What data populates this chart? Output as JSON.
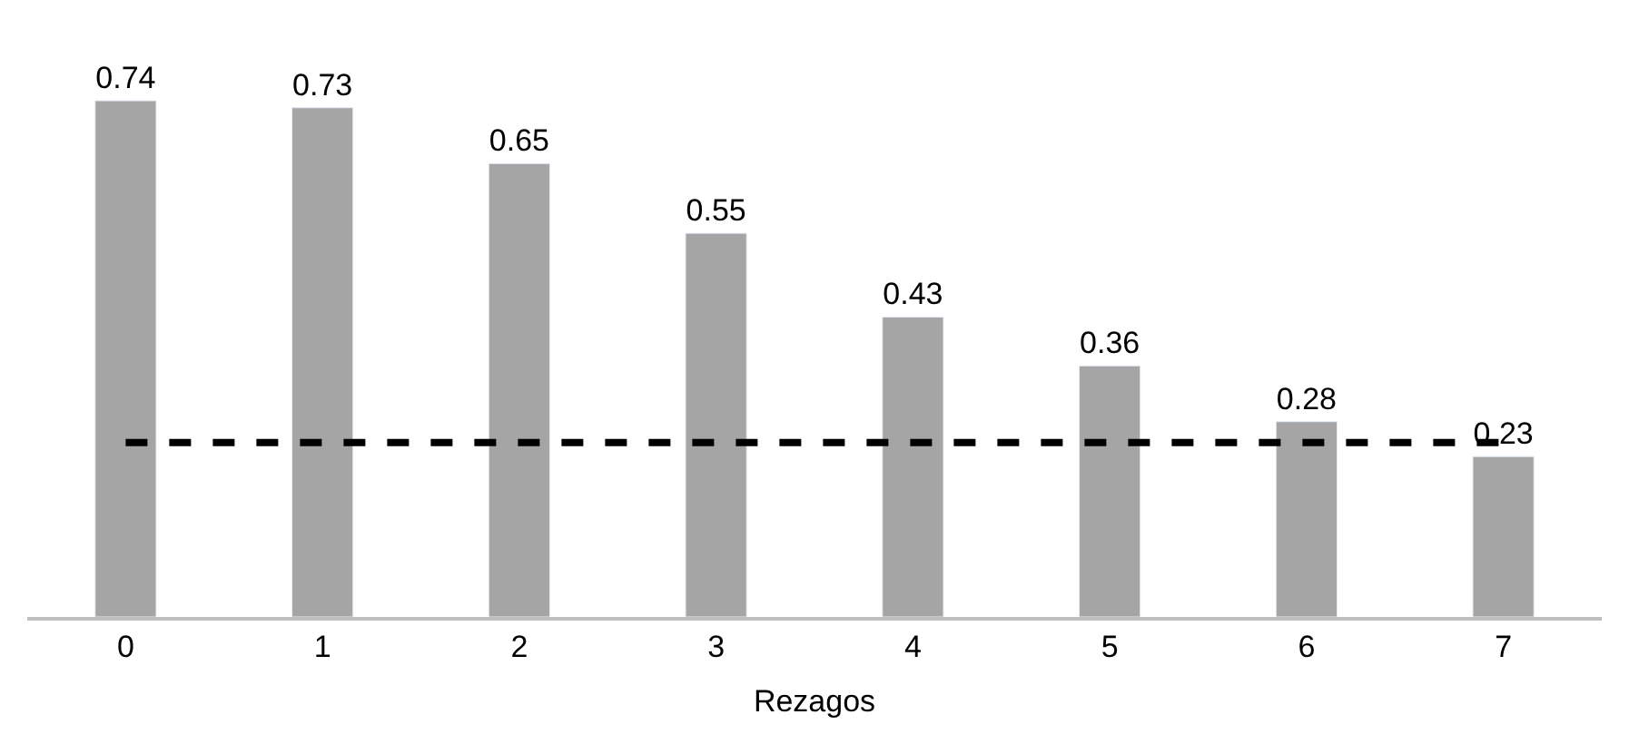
{
  "chart_data": {
    "type": "bar",
    "xlabel": "Rezagos",
    "categories": [
      "0",
      "1",
      "2",
      "3",
      "4",
      "5",
      "6",
      "7"
    ],
    "values": [
      0.74,
      0.73,
      0.65,
      0.55,
      0.43,
      0.36,
      0.28,
      0.23
    ],
    "color": "#a5a5a5",
    "data_labels": true,
    "tick_labels": "x",
    "ref_lines": [
      {
        "axis": "y",
        "value": 0.25,
        "label": null,
        "color": "#000000",
        "line_style": "dashed"
      }
    ]
  }
}
